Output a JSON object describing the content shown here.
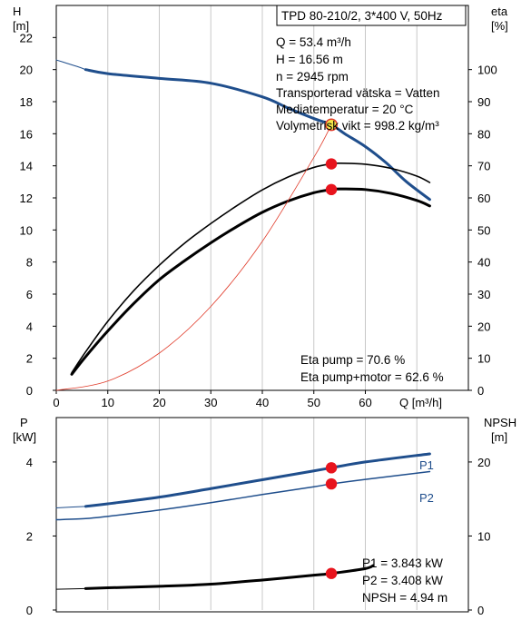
{
  "chart_data": [
    {
      "type": "line",
      "title_box": "TPD 80-210/2, 3*400 V, 50Hz",
      "ylabel_left": [
        "H",
        "[m]"
      ],
      "ylabel_right": [
        "eta",
        "[%]"
      ],
      "xlabel": "Q [m³/h]",
      "xlim": [
        0,
        80
      ],
      "ylim_left": [
        0,
        24
      ],
      "ylim_right": [
        0,
        120
      ],
      "x_ticks": [
        0,
        10,
        20,
        30,
        40,
        50,
        60
      ],
      "y_ticks_left": [
        0,
        2,
        4,
        6,
        8,
        10,
        12,
        14,
        16,
        18,
        20,
        22
      ],
      "y_ticks_right": [
        0,
        10,
        20,
        30,
        40,
        50,
        60,
        70,
        80,
        90,
        100
      ],
      "info_lines": [
        "Q = 53.4 m³/h",
        "H = 16.56 m",
        "n = 2945 rpm",
        "Transporterad vätska = Vatten",
        "Mediatemperatur = 20 °C",
        "Volymetrisk vikt = 998.2 kg/m³"
      ],
      "eta_text": [
        "Eta pump = 70.6 %",
        "Eta pump+motor = 62.6 %"
      ],
      "series": [
        {
          "name": "H",
          "axis": "left",
          "color": "#1f4e8c",
          "width": 3,
          "x": [
            5.7,
            10,
            20,
            30,
            40,
            45,
            50,
            53.4,
            56,
            60,
            64,
            68,
            72.5
          ],
          "y": [
            20.0,
            19.75,
            19.45,
            19.15,
            18.3,
            17.6,
            16.95,
            16.56,
            16.0,
            15.2,
            14.2,
            13.0,
            11.9
          ]
        },
        {
          "name": "H-extrapolated",
          "axis": "left",
          "color": "#1f4e8c",
          "width": 1,
          "x": [
            0,
            2,
            4,
            5.7
          ],
          "y": [
            20.6,
            20.4,
            20.2,
            20.0
          ]
        },
        {
          "name": "Eta pump",
          "axis": "right",
          "color": "#000000",
          "width": 1.6,
          "x": [
            3,
            5.7,
            10,
            15,
            20,
            25,
            30,
            35,
            40,
            45,
            50,
            53.4,
            55,
            60,
            65,
            70,
            72.5
          ],
          "y": [
            5.5,
            12,
            21.5,
            31,
            39,
            46,
            52,
            57.5,
            62.5,
            66.5,
            69.5,
            70.6,
            70.8,
            70.5,
            69.2,
            66.8,
            64.8
          ]
        },
        {
          "name": "Eta pump+motor",
          "axis": "right",
          "color": "#000000",
          "width": 3,
          "x": [
            3,
            5.7,
            10,
            15,
            20,
            25,
            30,
            35,
            40,
            45,
            50,
            53.4,
            55,
            60,
            65,
            70,
            72.5
          ],
          "y": [
            5,
            10.5,
            18.5,
            27,
            34.5,
            40.5,
            46,
            51,
            55.5,
            59,
            61.6,
            62.6,
            62.8,
            62.6,
            61.4,
            59.2,
            57.5
          ]
        },
        {
          "name": "System curve",
          "axis": "left",
          "color": "#e03b2a",
          "width": 0.8,
          "x": [
            0,
            10,
            20,
            30,
            40,
            50,
            53.4
          ],
          "y": [
            0,
            0.58,
            2.32,
            5.23,
            9.29,
            14.52,
            16.56
          ]
        }
      ],
      "markers": [
        {
          "axis": "left",
          "x": 53.4,
          "y": 16.56,
          "color": "#f4e64a",
          "stroke": "#e03b2a"
        },
        {
          "axis": "right",
          "x": 53.4,
          "y": 70.6,
          "color": "#e8141d"
        },
        {
          "axis": "right",
          "x": 53.4,
          "y": 62.6,
          "color": "#e8141d"
        }
      ]
    },
    {
      "type": "line",
      "ylabel_left": [
        "P",
        "[kW]"
      ],
      "ylabel_right": [
        "NPSH",
        "[m]"
      ],
      "xlim": [
        0,
        80
      ],
      "ylim_left": [
        0,
        5
      ],
      "ylim_right": [
        0,
        26
      ],
      "y_ticks_left": [
        0,
        2,
        4
      ],
      "y_ticks_right": [
        0,
        10,
        20
      ],
      "value_text": [
        "P1 = 3.843 kW",
        "P2 = 3.408 kW",
        "NPSH = 4.94 m"
      ],
      "series": [
        {
          "name": "P1",
          "axis": "left",
          "color": "#1f4e8c",
          "width": 3,
          "x": [
            5.7,
            10,
            20,
            30,
            40,
            50,
            53.4,
            60,
            72.5
          ],
          "y": [
            2.8,
            2.87,
            3.05,
            3.28,
            3.52,
            3.76,
            3.843,
            4.0,
            4.22
          ]
        },
        {
          "name": "P1-extrapolated",
          "axis": "left",
          "color": "#1f4e8c",
          "width": 1,
          "x": [
            0,
            5.7
          ],
          "y": [
            2.76,
            2.8
          ]
        },
        {
          "name": "P2",
          "axis": "left",
          "color": "#1f4e8c",
          "width": 1.5,
          "x": [
            0,
            5.7,
            10,
            20,
            30,
            40,
            50,
            53.4,
            60,
            72.5
          ],
          "y": [
            2.44,
            2.47,
            2.53,
            2.7,
            2.9,
            3.12,
            3.33,
            3.408,
            3.53,
            3.74
          ]
        },
        {
          "name": "NPSH",
          "axis": "right",
          "color": "#000000",
          "width": 3,
          "x": [
            5.7,
            10,
            20,
            30,
            40,
            50,
            53.4,
            60,
            61.5
          ],
          "y": [
            2.9,
            3.0,
            3.2,
            3.5,
            4.05,
            4.7,
            4.94,
            5.6,
            6.0
          ]
        },
        {
          "name": "NPSH-extrapolated",
          "axis": "right",
          "color": "#000000",
          "width": 1,
          "x": [
            0,
            5.7
          ],
          "y": [
            2.8,
            2.9
          ]
        }
      ],
      "markers": [
        {
          "axis": "left",
          "x": 53.4,
          "y": 3.843,
          "color": "#e8141d"
        },
        {
          "axis": "left",
          "x": 53.4,
          "y": 3.408,
          "color": "#e8141d"
        },
        {
          "axis": "right",
          "x": 53.4,
          "y": 4.94,
          "color": "#e8141d"
        }
      ]
    }
  ],
  "labels": {
    "p1": "P1",
    "p2": "P2"
  }
}
